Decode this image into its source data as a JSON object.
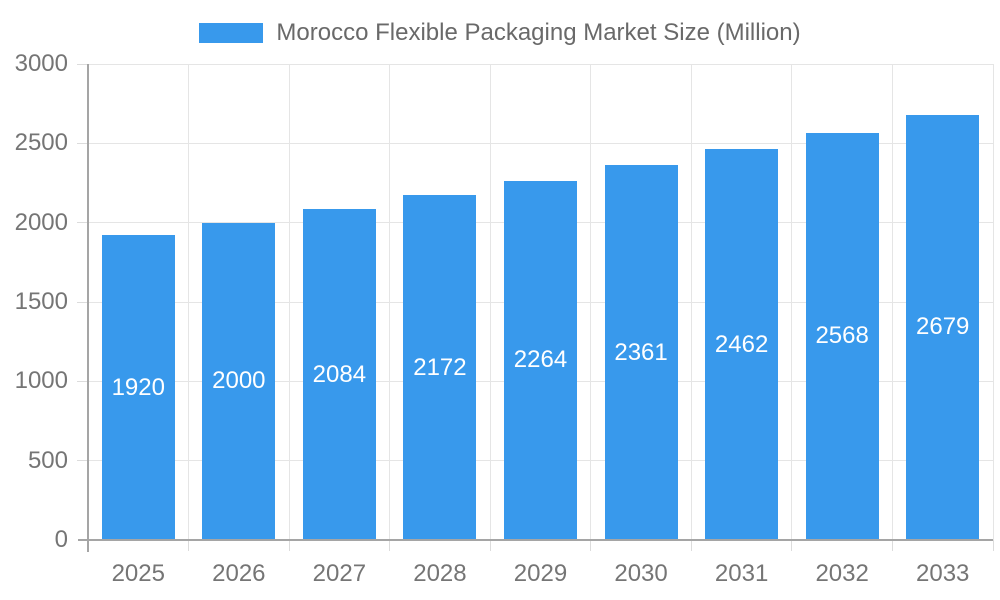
{
  "chart_data": {
    "type": "bar",
    "title": "Morocco Flexible Packaging Market Size (Million)",
    "series_name": "Morocco Flexible Packaging Market Size (Million)",
    "categories": [
      "2025",
      "2026",
      "2027",
      "2028",
      "2029",
      "2030",
      "2031",
      "2032",
      "2033"
    ],
    "values": [
      1920,
      2000,
      2084,
      2172,
      2264,
      2361,
      2462,
      2568,
      2679
    ],
    "xlabel": "",
    "ylabel": "",
    "ylim": [
      0,
      3000
    ],
    "yticks": [
      0,
      500,
      1000,
      1500,
      2000,
      2500,
      3000
    ],
    "grid": true,
    "legend_position": "top",
    "value_labels": "inside-center",
    "colors": {
      "bar": "#3899EC",
      "bar_label": "#FFFFFF",
      "grid": "#E5E5E5",
      "axis": "#A5A5A5",
      "tick": "#DCDCDC",
      "tick_label": "#757575",
      "legend_label": "#696969",
      "background": "#FFFFFF"
    }
  }
}
